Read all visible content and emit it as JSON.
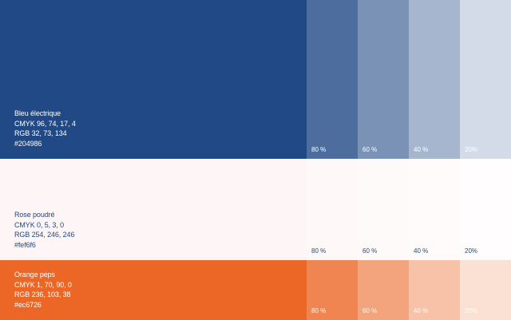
{
  "swatches": [
    {
      "name": "Bleu électrique",
      "cmyk": "CMYK 96, 74, 17, 4",
      "rgb": "RGB 32, 73, 134",
      "hex": "#204986",
      "color": "#204986",
      "text_color": "#ffffff",
      "tint_text_color": "#ffffff",
      "tints": [
        {
          "label": "80 %",
          "color": "#4d6d9e"
        },
        {
          "label": "60 %",
          "color": "#7992b6"
        },
        {
          "label": "40 %",
          "color": "#a6b6cf"
        },
        {
          "label": "20%",
          "color": "#d2dbe7"
        }
      ]
    },
    {
      "name": "Rose poudré",
      "cmyk": "CMYK 0, 5, 3, 0",
      "rgb": "RGB 254, 246, 246",
      "hex": "#fef6f6",
      "color": "#fef6f6",
      "text_color": "#204986",
      "tint_text_color": "#204986",
      "tints": [
        {
          "label": "80 %",
          "color": "#fef8f8"
        },
        {
          "label": "60 %",
          "color": "#fefafa"
        },
        {
          "label": "40 %",
          "color": "#fffbfb"
        },
        {
          "label": "20%",
          "color": "#fffdfd"
        }
      ]
    },
    {
      "name": "Orange peps",
      "cmyk": "CMYK 1, 70, 90, 0",
      "rgb": "RGB 236, 103, 38",
      "hex": "#ec6726",
      "color": "#ec6726",
      "text_color": "#ffffff",
      "tint_text_color": "#ffffff",
      "tints": [
        {
          "label": "80 %",
          "color": "#f08551"
        },
        {
          "label": "60 %",
          "color": "#f4a47d"
        },
        {
          "label": "40 %",
          "color": "#f7c2a8"
        },
        {
          "label": "20%",
          "color": "#fbe1d4"
        }
      ]
    }
  ]
}
